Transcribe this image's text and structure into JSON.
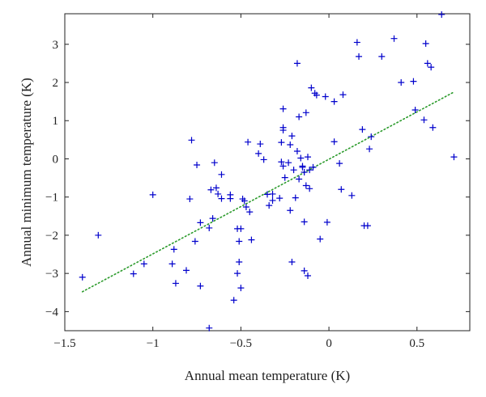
{
  "chart_data": {
    "type": "scatter",
    "xlabel": "Annual mean temperature (K)",
    "ylabel": "Annual minimum temperature (K)",
    "xlim": [
      -1.5,
      0.8
    ],
    "ylim": [
      -4.5,
      3.8
    ],
    "xticks": [
      -1.5,
      -1,
      -0.5,
      0,
      0.5
    ],
    "xtick_labels": [
      "−1.5",
      "−1",
      "−0.5",
      "0",
      "0.5"
    ],
    "yticks": [
      -4,
      -3,
      -2,
      -1,
      0,
      1,
      2,
      3
    ],
    "ytick_labels": [
      "−4",
      "−3",
      "−2",
      "−1",
      "0",
      "1",
      "2",
      "3"
    ],
    "grid": false,
    "legend": "none",
    "series": [
      {
        "marker": "+",
        "color": "#0000cc",
        "points": [
          [
            -1.4,
            -3.1
          ],
          [
            -1.31,
            -2.0
          ],
          [
            -1.11,
            -3.01
          ],
          [
            -1.05,
            -2.75
          ],
          [
            -1.0,
            -0.94
          ],
          [
            -0.89,
            -2.75
          ],
          [
            -0.88,
            -2.37
          ],
          [
            -0.87,
            -3.26
          ],
          [
            -0.81,
            -2.92
          ],
          [
            -0.79,
            -1.05
          ],
          [
            -0.78,
            0.49
          ],
          [
            -0.76,
            -2.16
          ],
          [
            -0.75,
            -0.16
          ],
          [
            -0.73,
            -1.67
          ],
          [
            -0.73,
            -3.33
          ],
          [
            -0.68,
            -4.43
          ],
          [
            -0.68,
            -1.81
          ],
          [
            -0.67,
            -0.81
          ],
          [
            -0.66,
            -1.56
          ],
          [
            -0.65,
            -0.1
          ],
          [
            -0.64,
            -0.76
          ],
          [
            -0.63,
            -0.92
          ],
          [
            -0.61,
            -0.41
          ],
          [
            -0.61,
            -1.04
          ],
          [
            -0.56,
            -0.94
          ],
          [
            -0.56,
            -1.04
          ],
          [
            -0.54,
            -3.7
          ],
          [
            -0.52,
            -1.83
          ],
          [
            -0.52,
            -3.0
          ],
          [
            -0.51,
            -2.16
          ],
          [
            -0.51,
            -2.7
          ],
          [
            -0.5,
            -3.38
          ],
          [
            -0.5,
            -1.83
          ],
          [
            -0.49,
            -1.05
          ],
          [
            -0.48,
            -1.1
          ],
          [
            -0.47,
            -1.26
          ],
          [
            -0.46,
            0.44
          ],
          [
            -0.45,
            -1.39
          ],
          [
            -0.44,
            -2.12
          ],
          [
            -0.4,
            0.14
          ],
          [
            -0.39,
            0.39
          ],
          [
            -0.37,
            -0.02
          ],
          [
            -0.35,
            -0.93
          ],
          [
            -0.34,
            -1.22
          ],
          [
            -0.32,
            -1.09
          ],
          [
            -0.32,
            -0.92
          ],
          [
            -0.28,
            -1.03
          ],
          [
            -0.27,
            0.43
          ],
          [
            -0.27,
            -0.08
          ],
          [
            -0.26,
            0.75
          ],
          [
            -0.26,
            0.82
          ],
          [
            -0.26,
            1.31
          ],
          [
            -0.26,
            -0.19
          ],
          [
            -0.25,
            -0.49
          ],
          [
            -0.23,
            -0.1
          ],
          [
            -0.22,
            -1.35
          ],
          [
            -0.22,
            0.37
          ],
          [
            -0.21,
            0.6
          ],
          [
            -0.21,
            -2.7
          ],
          [
            -0.2,
            -0.29
          ],
          [
            -0.19,
            -1.02
          ],
          [
            -0.18,
            2.5
          ],
          [
            -0.18,
            0.2
          ],
          [
            -0.17,
            1.1
          ],
          [
            -0.17,
            -0.53
          ],
          [
            -0.16,
            0.02
          ],
          [
            -0.15,
            -0.22
          ],
          [
            -0.15,
            -0.19
          ],
          [
            -0.14,
            -1.65
          ],
          [
            -0.14,
            -2.93
          ],
          [
            -0.14,
            -0.35
          ],
          [
            -0.13,
            1.21
          ],
          [
            -0.13,
            -0.7
          ],
          [
            -0.12,
            -3.06
          ],
          [
            -0.12,
            0.05
          ],
          [
            -0.11,
            -0.29
          ],
          [
            -0.11,
            -0.78
          ],
          [
            -0.1,
            1.86
          ],
          [
            -0.09,
            -0.22
          ],
          [
            -0.08,
            1.72
          ],
          [
            -0.07,
            1.67
          ],
          [
            -0.05,
            -2.1
          ],
          [
            -0.02,
            1.63
          ],
          [
            -0.01,
            -1.66
          ],
          [
            0.03,
            1.5
          ],
          [
            0.03,
            0.45
          ],
          [
            0.06,
            -0.12
          ],
          [
            0.07,
            -0.8
          ],
          [
            0.08,
            1.68
          ],
          [
            0.13,
            -0.96
          ],
          [
            0.16,
            3.05
          ],
          [
            0.17,
            2.68
          ],
          [
            0.19,
            0.77
          ],
          [
            0.2,
            -1.75
          ],
          [
            0.22,
            -1.75
          ],
          [
            0.23,
            0.26
          ],
          [
            0.24,
            0.58
          ],
          [
            0.3,
            2.68
          ],
          [
            0.37,
            3.15
          ],
          [
            0.41,
            2.0
          ],
          [
            0.48,
            2.03
          ],
          [
            0.49,
            1.28
          ],
          [
            0.54,
            1.02
          ],
          [
            0.55,
            3.02
          ],
          [
            0.56,
            2.5
          ],
          [
            0.58,
            2.4
          ],
          [
            0.59,
            0.82
          ],
          [
            0.64,
            3.78
          ],
          [
            0.71,
            0.05
          ]
        ]
      },
      {
        "type": "line",
        "style": "dotted",
        "color": "#2a9a2a",
        "x": [
          -1.4,
          0.71
        ],
        "y": [
          -3.48,
          1.75
        ]
      }
    ]
  }
}
